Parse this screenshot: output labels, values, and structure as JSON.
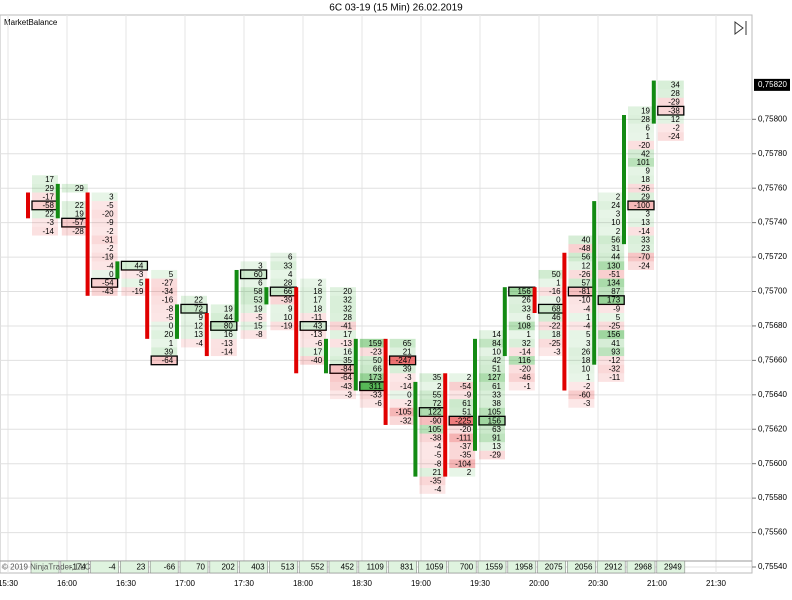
{
  "chart_data": {
    "type": "footprint",
    "title": "6C 03-19 (15 Min)  26.02.2019",
    "indicator": "MarketBalance",
    "copyright": "© 2019 NinjaTrader, LLC",
    "ylim": [
      0.7554,
      0.7586
    ],
    "yticks": [
      {
        "value": 0.7554,
        "label": "0,75540"
      },
      {
        "value": 0.7556,
        "label": "0,75560"
      },
      {
        "value": 0.7558,
        "label": "0,75580"
      },
      {
        "value": 0.756,
        "label": "0,75600"
      },
      {
        "value": 0.7562,
        "label": "0,75620"
      },
      {
        "value": 0.7564,
        "label": "0,75640"
      },
      {
        "value": 0.7566,
        "label": "0,75660"
      },
      {
        "value": 0.7568,
        "label": "0,75680"
      },
      {
        "value": 0.757,
        "label": "0,75700"
      },
      {
        "value": 0.7572,
        "label": "0,75720"
      },
      {
        "value": 0.7574,
        "label": "0,75740"
      },
      {
        "value": 0.7576,
        "label": "0,75760"
      },
      {
        "value": 0.7578,
        "label": "0,75780"
      },
      {
        "value": 0.758,
        "label": "0,75800"
      }
    ],
    "last_price": {
      "value": 0.7582,
      "label": "0,75820"
    },
    "xticks": [
      "15:30",
      "16:00",
      "16:30",
      "17:00",
      "17:30",
      "18:00",
      "18:30",
      "19:00",
      "19:30",
      "20:00",
      "20:30",
      "21:00",
      "21:30"
    ],
    "tick_size": 5e-05,
    "positive_color": "#1fa01f",
    "negative_color": "#e01a1a",
    "grid": true,
    "columns": [
      {
        "top": 0.75765,
        "values": [
          17,
          29,
          -17,
          -58,
          22,
          -3,
          -14
        ],
        "boxed": 3,
        "open": 0.75755,
        "close": 0.75745
      },
      {
        "top": 0.7576,
        "values": [
          29,
          null,
          22,
          19,
          -57,
          -28
        ],
        "boxed": 4,
        "open": 0.75745,
        "close": 0.7576
      },
      {
        "top": 0.75755,
        "values": [
          3,
          -5,
          -20,
          -9,
          -2,
          -31,
          -2,
          -19,
          -4,
          0,
          -54,
          -43
        ],
        "boxed": 10,
        "open": 0.75755,
        "close": 0.757
      },
      {
        "top": 0.75715,
        "values": [
          44,
          -3,
          5,
          -19
        ],
        "boxed": 0,
        "open": 0.7571,
        "close": 0.75715
      },
      {
        "top": 0.7571,
        "values": [
          5,
          -27,
          -34,
          -16,
          -8,
          -5,
          0,
          20,
          1,
          39,
          -64
        ],
        "boxed": 10,
        "open": 0.75705,
        "close": 0.75675
      },
      {
        "top": 0.75695,
        "values": [
          22,
          72,
          9,
          12,
          13,
          -4
        ],
        "boxed": 1,
        "open": 0.75675,
        "close": 0.7569
      },
      {
        "top": 0.7569,
        "values": [
          19,
          44,
          80,
          16,
          -13,
          -14
        ],
        "boxed": 2,
        "open": 0.75685,
        "close": 0.75665
      },
      {
        "top": 0.75715,
        "values": [
          3,
          60,
          6,
          58,
          53,
          19,
          -5,
          15,
          -8
        ],
        "boxed": 1,
        "open": 0.75685,
        "close": 0.7571
      },
      {
        "top": 0.7572,
        "values": [
          6,
          33,
          4,
          28,
          66,
          -39,
          9,
          10,
          -19
        ],
        "boxed": 4,
        "open": 0.75695,
        "close": 0.757
      },
      {
        "top": 0.75705,
        "values": [
          2,
          18,
          17,
          18,
          -11,
          43,
          -13,
          -6,
          17,
          -40
        ],
        "boxed": 5,
        "open": 0.757,
        "close": 0.75655
      },
      {
        "top": 0.757,
        "values": [
          20,
          32,
          32,
          28,
          -41,
          17,
          -13,
          16,
          35,
          -84,
          -64,
          -43,
          -3
        ],
        "boxed": 9,
        "open": 0.75655,
        "close": 0.7567
      },
      {
        "top": 0.7567,
        "values": [
          159,
          -23,
          50,
          66,
          173,
          311,
          -33,
          -6
        ],
        "boxed": 5,
        "open": 0.75645,
        "close": 0.7567
      },
      {
        "top": 0.7567,
        "values": [
          65,
          21,
          -247,
          39,
          -3,
          -14,
          0,
          -2,
          -105,
          -32
        ],
        "boxed": 2,
        "open": 0.7567,
        "close": 0.75625
      },
      {
        "top": 0.7565,
        "values": [
          35,
          2,
          55,
          72,
          122,
          -90,
          105,
          -38,
          -4,
          -5,
          -8,
          21,
          -35,
          -4
        ],
        "boxed": 4,
        "open": 0.75595,
        "close": 0.75645
      },
      {
        "top": 0.7565,
        "values": [
          2,
          -54,
          -9,
          61,
          51,
          -225,
          -20,
          -111,
          -37,
          -35,
          -104,
          2
        ],
        "boxed": 5,
        "open": 0.7565,
        "close": 0.75595
      },
      {
        "top": 0.75675,
        "values": [
          14,
          84,
          10,
          42,
          51,
          127,
          61,
          33,
          38,
          105,
          156,
          63,
          91,
          13,
          -29
        ],
        "boxed": 10,
        "open": 0.7561,
        "close": 0.7567
      },
      {
        "top": 0.757,
        "values": [
          156,
          26,
          33,
          6,
          108,
          1,
          32,
          -14,
          116,
          -20,
          -46,
          -1
        ],
        "boxed": 0,
        "open": 0.75665,
        "close": 0.757
      },
      {
        "top": 0.7571,
        "values": [
          50,
          1,
          -16,
          0,
          68,
          46,
          -22,
          18,
          -25,
          -3
        ],
        "boxed": 4,
        "open": 0.757,
        "close": 0.7569
      },
      {
        "top": 0.7573,
        "values": [
          40,
          -48,
          56,
          12,
          -26,
          57,
          -81,
          -10,
          -4,
          1,
          -4,
          5,
          3,
          26,
          18,
          10,
          1,
          -2,
          -60,
          -3
        ],
        "boxed": 6,
        "open": 0.7572,
        "close": 0.75645
      },
      {
        "top": 0.75755,
        "values": [
          2,
          24,
          3,
          10,
          2,
          56,
          31,
          44,
          130,
          -51,
          134,
          87,
          173,
          -9,
          5,
          -25,
          156,
          41,
          93,
          -12,
          -32,
          -11
        ],
        "boxed": 12,
        "open": 0.7566,
        "close": 0.7575
      },
      {
        "top": 0.75805,
        "values": [
          19,
          28,
          6,
          1,
          -20,
          42,
          101,
          9,
          18,
          -26,
          29,
          -100,
          3,
          13,
          -14,
          33,
          23,
          -70,
          -24
        ],
        "boxed": 11,
        "open": 0.7573,
        "close": 0.758
      },
      {
        "top": 0.7582,
        "values": [
          34,
          28,
          -29,
          -38,
          12,
          -2,
          -24
        ],
        "boxed": 3,
        "open": 0.758,
        "close": 0.7582
      }
    ],
    "delta": [
      null,
      -174,
      -4,
      23,
      -66,
      70,
      202,
      403,
      513,
      552,
      452,
      1109,
      831,
      1059,
      700,
      1559,
      1958,
      2075,
      2056,
      2912,
      2968,
      2949
    ]
  }
}
